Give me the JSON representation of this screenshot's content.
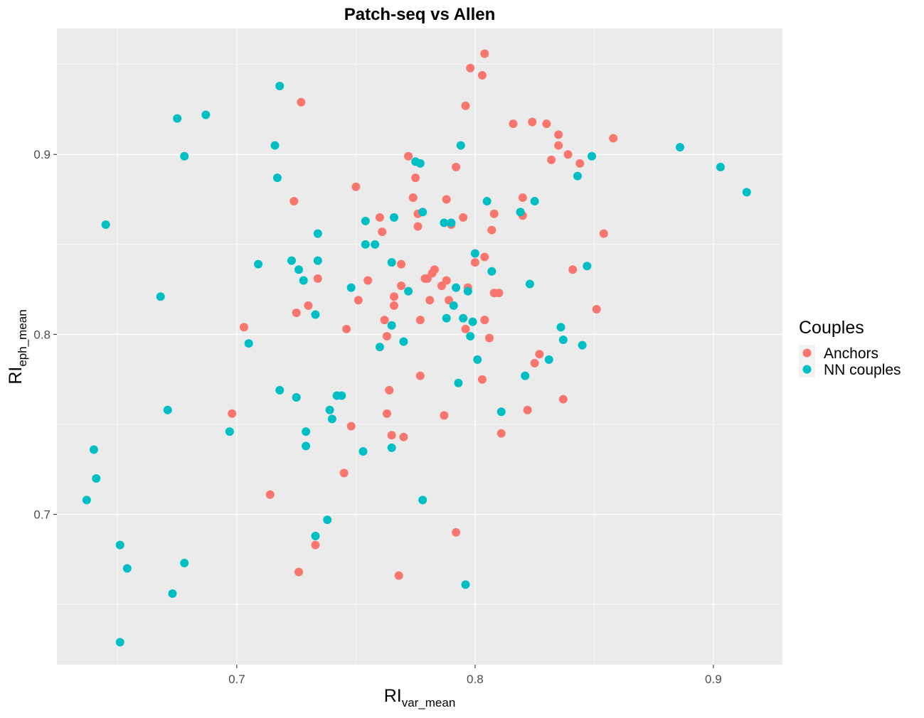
{
  "chart_data": {
    "type": "scatter",
    "title": "Patch-seq vs Allen",
    "xlabel": {
      "main": "RI",
      "sub": "var_mean"
    },
    "ylabel": {
      "main": "RI",
      "sub": "eph_mean"
    },
    "xlim": [
      0.6245,
      0.929
    ],
    "ylim": [
      0.6165,
      0.97
    ],
    "x_ticks": [
      0.7,
      0.8,
      0.9
    ],
    "x_tick_labels": [
      "0.7",
      "0.8",
      "0.9"
    ],
    "y_ticks": [
      0.7,
      0.8,
      0.9
    ],
    "y_tick_labels": [
      "0.7",
      "0.8",
      "0.9"
    ],
    "grid": true,
    "legend": {
      "title": "Couples",
      "position": "right"
    },
    "series": [
      {
        "name": "Anchors",
        "color": "#F8766D",
        "points": [
          [
            0.727,
            0.929
          ],
          [
            0.724,
            0.874
          ],
          [
            0.703,
            0.804
          ],
          [
            0.698,
            0.756
          ],
          [
            0.714,
            0.711
          ],
          [
            0.726,
            0.668
          ],
          [
            0.733,
            0.683
          ],
          [
            0.734,
            0.831
          ],
          [
            0.73,
            0.816
          ],
          [
            0.725,
            0.812
          ],
          [
            0.745,
            0.723
          ],
          [
            0.746,
            0.803
          ],
          [
            0.748,
            0.749
          ],
          [
            0.75,
            0.882
          ],
          [
            0.751,
            0.819
          ],
          [
            0.755,
            0.83
          ],
          [
            0.76,
            0.865
          ],
          [
            0.761,
            0.857
          ],
          [
            0.762,
            0.808
          ],
          [
            0.763,
            0.799
          ],
          [
            0.763,
            0.756
          ],
          [
            0.764,
            0.769
          ],
          [
            0.765,
            0.744
          ],
          [
            0.766,
            0.816
          ],
          [
            0.766,
            0.821
          ],
          [
            0.768,
            0.666
          ],
          [
            0.769,
            0.827
          ],
          [
            0.769,
            0.839
          ],
          [
            0.77,
            0.743
          ],
          [
            0.772,
            0.899
          ],
          [
            0.774,
            0.876
          ],
          [
            0.775,
            0.887
          ],
          [
            0.776,
            0.867
          ],
          [
            0.776,
            0.86
          ],
          [
            0.777,
            0.808
          ],
          [
            0.777,
            0.777
          ],
          [
            0.779,
            0.831
          ],
          [
            0.78,
            0.831
          ],
          [
            0.781,
            0.819
          ],
          [
            0.782,
            0.834
          ],
          [
            0.783,
            0.836
          ],
          [
            0.786,
            0.827
          ],
          [
            0.787,
            0.755
          ],
          [
            0.788,
            0.875
          ],
          [
            0.788,
            0.83
          ],
          [
            0.789,
            0.819
          ],
          [
            0.79,
            0.861
          ],
          [
            0.792,
            0.893
          ],
          [
            0.792,
            0.69
          ],
          [
            0.795,
            0.865
          ],
          [
            0.796,
            0.927
          ],
          [
            0.797,
            0.826
          ],
          [
            0.798,
            0.948
          ],
          [
            0.8,
            0.84
          ],
          [
            0.803,
            0.944
          ],
          [
            0.803,
            0.775
          ],
          [
            0.804,
            0.808
          ],
          [
            0.804,
            0.956
          ],
          [
            0.804,
            0.843
          ],
          [
            0.806,
            0.798
          ],
          [
            0.807,
            0.858
          ],
          [
            0.808,
            0.867
          ],
          [
            0.808,
            0.823
          ],
          [
            0.81,
            0.823
          ],
          [
            0.811,
            0.745
          ],
          [
            0.816,
            0.917
          ],
          [
            0.82,
            0.866
          ],
          [
            0.82,
            0.876
          ],
          [
            0.822,
            0.758
          ],
          [
            0.824,
            0.918
          ],
          [
            0.825,
            0.784
          ],
          [
            0.827,
            0.789
          ],
          [
            0.83,
            0.917
          ],
          [
            0.832,
            0.897
          ],
          [
            0.835,
            0.905
          ],
          [
            0.835,
            0.911
          ],
          [
            0.837,
            0.764
          ],
          [
            0.839,
            0.9
          ],
          [
            0.841,
            0.836
          ],
          [
            0.844,
            0.895
          ],
          [
            0.851,
            0.814
          ],
          [
            0.854,
            0.856
          ],
          [
            0.858,
            0.909
          ],
          [
            0.796,
            0.803
          ]
        ]
      },
      {
        "name": "NN couples",
        "color": "#00BFC4",
        "points": [
          [
            0.637,
            0.708
          ],
          [
            0.64,
            0.736
          ],
          [
            0.641,
            0.72
          ],
          [
            0.645,
            0.861
          ],
          [
            0.651,
            0.683
          ],
          [
            0.651,
            0.629
          ],
          [
            0.654,
            0.67
          ],
          [
            0.668,
            0.821
          ],
          [
            0.671,
            0.758
          ],
          [
            0.673,
            0.656
          ],
          [
            0.675,
            0.92
          ],
          [
            0.678,
            0.899
          ],
          [
            0.678,
            0.673
          ],
          [
            0.687,
            0.922
          ],
          [
            0.697,
            0.746
          ],
          [
            0.705,
            0.795
          ],
          [
            0.709,
            0.839
          ],
          [
            0.716,
            0.905
          ],
          [
            0.717,
            0.887
          ],
          [
            0.718,
            0.938
          ],
          [
            0.718,
            0.769
          ],
          [
            0.723,
            0.841
          ],
          [
            0.725,
            0.765
          ],
          [
            0.726,
            0.836
          ],
          [
            0.728,
            0.83
          ],
          [
            0.729,
            0.746
          ],
          [
            0.729,
            0.738
          ],
          [
            0.733,
            0.811
          ],
          [
            0.733,
            0.688
          ],
          [
            0.734,
            0.856
          ],
          [
            0.734,
            0.841
          ],
          [
            0.738,
            0.697
          ],
          [
            0.739,
            0.758
          ],
          [
            0.74,
            0.753
          ],
          [
            0.742,
            0.766
          ],
          [
            0.744,
            0.766
          ],
          [
            0.748,
            0.826
          ],
          [
            0.753,
            0.735
          ],
          [
            0.754,
            0.85
          ],
          [
            0.754,
            0.863
          ],
          [
            0.758,
            0.85
          ],
          [
            0.76,
            0.793
          ],
          [
            0.765,
            0.84
          ],
          [
            0.765,
            0.737
          ],
          [
            0.765,
            0.805
          ],
          [
            0.766,
            0.865
          ],
          [
            0.77,
            0.796
          ],
          [
            0.772,
            0.824
          ],
          [
            0.775,
            0.896
          ],
          [
            0.777,
            0.895
          ],
          [
            0.778,
            0.868
          ],
          [
            0.778,
            0.708
          ],
          [
            0.787,
            0.862
          ],
          [
            0.788,
            0.809
          ],
          [
            0.79,
            0.862
          ],
          [
            0.791,
            0.816
          ],
          [
            0.792,
            0.826
          ],
          [
            0.793,
            0.773
          ],
          [
            0.794,
            0.905
          ],
          [
            0.795,
            0.809
          ],
          [
            0.796,
            0.661
          ],
          [
            0.797,
            0.824
          ],
          [
            0.798,
            0.799
          ],
          [
            0.799,
            0.807
          ],
          [
            0.8,
            0.845
          ],
          [
            0.801,
            0.786
          ],
          [
            0.805,
            0.874
          ],
          [
            0.807,
            0.835
          ],
          [
            0.811,
            0.757
          ],
          [
            0.819,
            0.868
          ],
          [
            0.821,
            0.777
          ],
          [
            0.823,
            0.828
          ],
          [
            0.825,
            0.874
          ],
          [
            0.831,
            0.786
          ],
          [
            0.836,
            0.804
          ],
          [
            0.837,
            0.797
          ],
          [
            0.843,
            0.888
          ],
          [
            0.845,
            0.794
          ],
          [
            0.847,
            0.838
          ],
          [
            0.849,
            0.899
          ],
          [
            0.886,
            0.904
          ],
          [
            0.903,
            0.893
          ],
          [
            0.914,
            0.879
          ]
        ]
      }
    ]
  }
}
